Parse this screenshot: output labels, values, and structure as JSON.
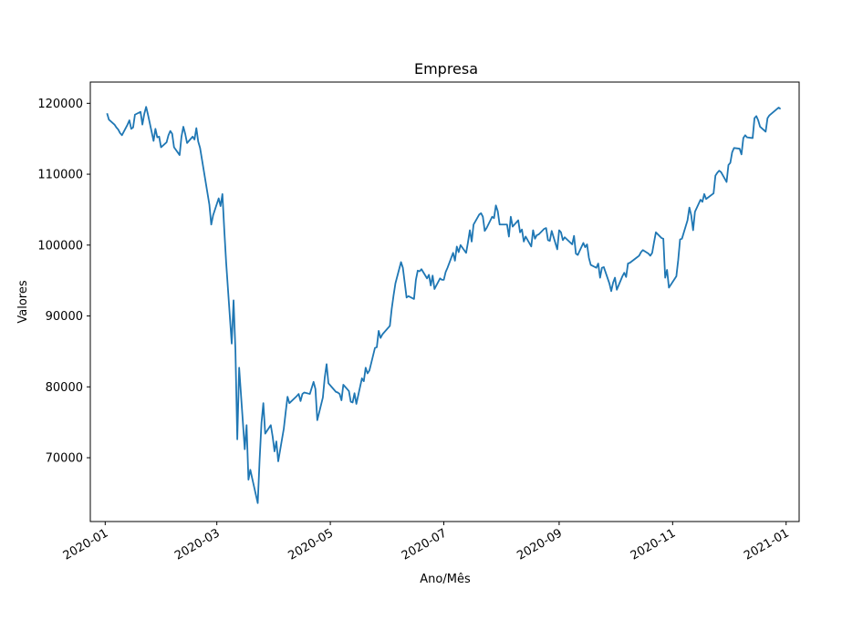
{
  "chart_data": {
    "type": "line",
    "title": "Empresa",
    "xlabel": "Ano/Mês",
    "ylabel": "Valores",
    "line_color": "#1f77b4",
    "ylim": [
      61000,
      123000
    ],
    "xlim": [
      "2019-12-24",
      "2021-01-08"
    ],
    "yticks": [
      70000,
      80000,
      90000,
      100000,
      110000,
      120000
    ],
    "yticklabels": [
      "70000",
      "80000",
      "90000",
      "100000",
      "110000",
      "120000"
    ],
    "xticks": [
      "2020-01-01",
      "2020-03-01",
      "2020-05-01",
      "2020-07-01",
      "2020-09-01",
      "2020-11-01",
      "2021-01-01"
    ],
    "xticklabels": [
      "2020-01",
      "2020-03",
      "2020-05",
      "2020-07",
      "2020-09",
      "2020-11",
      "2021-01"
    ],
    "series": [
      {
        "name": "Empresa",
        "points": [
          [
            "2020-01-02",
            118600
          ],
          [
            "2020-01-03",
            117700
          ],
          [
            "2020-01-06",
            117000
          ],
          [
            "2020-01-07",
            116600
          ],
          [
            "2020-01-08",
            116300
          ],
          [
            "2020-01-09",
            115800
          ],
          [
            "2020-01-10",
            115500
          ],
          [
            "2020-01-13",
            117000
          ],
          [
            "2020-01-14",
            117600
          ],
          [
            "2020-01-15",
            116400
          ],
          [
            "2020-01-16",
            116600
          ],
          [
            "2020-01-17",
            118400
          ],
          [
            "2020-01-20",
            118800
          ],
          [
            "2020-01-21",
            117000
          ],
          [
            "2020-01-22",
            118500
          ],
          [
            "2020-01-23",
            119500
          ],
          [
            "2020-01-24",
            118400
          ],
          [
            "2020-01-27",
            114700
          ],
          [
            "2020-01-28",
            116400
          ],
          [
            "2020-01-29",
            115200
          ],
          [
            "2020-01-30",
            115300
          ],
          [
            "2020-01-31",
            113800
          ],
          [
            "2020-02-03",
            114500
          ],
          [
            "2020-02-04",
            115500
          ],
          [
            "2020-02-05",
            116100
          ],
          [
            "2020-02-06",
            115700
          ],
          [
            "2020-02-07",
            113800
          ],
          [
            "2020-02-10",
            112700
          ],
          [
            "2020-02-11",
            115300
          ],
          [
            "2020-02-12",
            116700
          ],
          [
            "2020-02-13",
            115700
          ],
          [
            "2020-02-14",
            114400
          ],
          [
            "2020-02-17",
            115300
          ],
          [
            "2020-02-18",
            114900
          ],
          [
            "2020-02-19",
            116500
          ],
          [
            "2020-02-20",
            114600
          ],
          [
            "2020-02-21",
            113700
          ],
          [
            "2020-02-26",
            105700
          ],
          [
            "2020-02-27",
            102900
          ],
          [
            "2020-02-28",
            104200
          ],
          [
            "2020-03-02",
            106600
          ],
          [
            "2020-03-03",
            105500
          ],
          [
            "2020-03-04",
            107200
          ],
          [
            "2020-03-05",
            102200
          ],
          [
            "2020-03-06",
            97600
          ],
          [
            "2020-03-09",
            86100
          ],
          [
            "2020-03-10",
            92200
          ],
          [
            "2020-03-11",
            85200
          ],
          [
            "2020-03-12",
            72600
          ],
          [
            "2020-03-13",
            82700
          ],
          [
            "2020-03-16",
            71200
          ],
          [
            "2020-03-17",
            74600
          ],
          [
            "2020-03-18",
            66900
          ],
          [
            "2020-03-19",
            68300
          ],
          [
            "2020-03-20",
            67100
          ],
          [
            "2020-03-23",
            63600
          ],
          [
            "2020-03-24",
            69700
          ],
          [
            "2020-03-25",
            74900
          ],
          [
            "2020-03-26",
            77700
          ],
          [
            "2020-03-27",
            73400
          ],
          [
            "2020-03-30",
            74600
          ],
          [
            "2020-03-31",
            73000
          ],
          [
            "2020-04-01",
            70900
          ],
          [
            "2020-04-02",
            72300
          ],
          [
            "2020-04-03",
            69500
          ],
          [
            "2020-04-06",
            74100
          ],
          [
            "2020-04-07",
            76400
          ],
          [
            "2020-04-08",
            78600
          ],
          [
            "2020-04-09",
            77700
          ],
          [
            "2020-04-13",
            78700
          ],
          [
            "2020-04-14",
            79000
          ],
          [
            "2020-04-15",
            78000
          ],
          [
            "2020-04-16",
            79000
          ],
          [
            "2020-04-17",
            79200
          ],
          [
            "2020-04-20",
            79000
          ],
          [
            "2020-04-22",
            80700
          ],
          [
            "2020-04-23",
            79700
          ],
          [
            "2020-04-24",
            75300
          ],
          [
            "2020-04-27",
            78500
          ],
          [
            "2020-04-28",
            81300
          ],
          [
            "2020-04-29",
            83200
          ],
          [
            "2020-04-30",
            80500
          ],
          [
            "2020-05-04",
            79300
          ],
          [
            "2020-05-05",
            79200
          ],
          [
            "2020-05-06",
            79000
          ],
          [
            "2020-05-07",
            78100
          ],
          [
            "2020-05-08",
            80300
          ],
          [
            "2020-05-11",
            79400
          ],
          [
            "2020-05-12",
            77900
          ],
          [
            "2020-05-13",
            77800
          ],
          [
            "2020-05-14",
            79100
          ],
          [
            "2020-05-15",
            77600
          ],
          [
            "2020-05-18",
            81200
          ],
          [
            "2020-05-19",
            80800
          ],
          [
            "2020-05-20",
            82700
          ],
          [
            "2020-05-21",
            81900
          ],
          [
            "2020-05-22",
            82300
          ],
          [
            "2020-05-25",
            85500
          ],
          [
            "2020-05-26",
            85600
          ],
          [
            "2020-05-27",
            87900
          ],
          [
            "2020-05-28",
            86900
          ],
          [
            "2020-05-29",
            87400
          ],
          [
            "2020-06-02",
            88600
          ],
          [
            "2020-06-03",
            91000
          ],
          [
            "2020-06-04",
            92900
          ],
          [
            "2020-06-05",
            94600
          ],
          [
            "2020-06-08",
            97600
          ],
          [
            "2020-06-09",
            96800
          ],
          [
            "2020-06-10",
            94700
          ],
          [
            "2020-06-11",
            92600
          ],
          [
            "2020-06-12",
            92800
          ],
          [
            "2020-06-15",
            92400
          ],
          [
            "2020-06-16",
            95100
          ],
          [
            "2020-06-17",
            96400
          ],
          [
            "2020-06-18",
            96300
          ],
          [
            "2020-06-19",
            96600
          ],
          [
            "2020-06-22",
            95300
          ],
          [
            "2020-06-23",
            95800
          ],
          [
            "2020-06-24",
            94300
          ],
          [
            "2020-06-25",
            95700
          ],
          [
            "2020-06-26",
            93800
          ],
          [
            "2020-06-29",
            95300
          ],
          [
            "2020-06-30",
            95100
          ],
          [
            "2020-07-01",
            95100
          ],
          [
            "2020-07-02",
            96200
          ],
          [
            "2020-07-03",
            96800
          ],
          [
            "2020-07-06",
            98900
          ],
          [
            "2020-07-07",
            97800
          ],
          [
            "2020-07-08",
            99800
          ],
          [
            "2020-07-09",
            99000
          ],
          [
            "2020-07-10",
            100000
          ],
          [
            "2020-07-13",
            98900
          ],
          [
            "2020-07-14",
            100400
          ],
          [
            "2020-07-15",
            102100
          ],
          [
            "2020-07-16",
            100500
          ],
          [
            "2020-07-17",
            102900
          ],
          [
            "2020-07-20",
            104300
          ],
          [
            "2020-07-21",
            104500
          ],
          [
            "2020-07-22",
            104000
          ],
          [
            "2020-07-23",
            102000
          ],
          [
            "2020-07-24",
            102400
          ],
          [
            "2020-07-27",
            104000
          ],
          [
            "2020-07-28",
            103800
          ],
          [
            "2020-07-29",
            105600
          ],
          [
            "2020-07-30",
            104800
          ],
          [
            "2020-07-31",
            102900
          ],
          [
            "2020-08-03",
            102900
          ],
          [
            "2020-08-04",
            102900
          ],
          [
            "2020-08-05",
            101200
          ],
          [
            "2020-08-06",
            104000
          ],
          [
            "2020-08-07",
            102600
          ],
          [
            "2020-08-10",
            103500
          ],
          [
            "2020-08-11",
            101800
          ],
          [
            "2020-08-12",
            102200
          ],
          [
            "2020-08-13",
            100500
          ],
          [
            "2020-08-14",
            101200
          ],
          [
            "2020-08-17",
            99800
          ],
          [
            "2020-08-18",
            102100
          ],
          [
            "2020-08-19",
            100900
          ],
          [
            "2020-08-20",
            101400
          ],
          [
            "2020-08-21",
            101500
          ],
          [
            "2020-08-24",
            102300
          ],
          [
            "2020-08-25",
            102400
          ],
          [
            "2020-08-26",
            100700
          ],
          [
            "2020-08-27",
            100600
          ],
          [
            "2020-08-28",
            102000
          ],
          [
            "2020-08-31",
            99400
          ],
          [
            "2020-09-01",
            102100
          ],
          [
            "2020-09-02",
            101800
          ],
          [
            "2020-09-03",
            100700
          ],
          [
            "2020-09-04",
            101100
          ],
          [
            "2020-09-08",
            100100
          ],
          [
            "2020-09-09",
            101300
          ],
          [
            "2020-09-10",
            98800
          ],
          [
            "2020-09-11",
            98600
          ],
          [
            "2020-09-14",
            100300
          ],
          [
            "2020-09-15",
            99700
          ],
          [
            "2020-09-16",
            100100
          ],
          [
            "2020-09-17",
            98200
          ],
          [
            "2020-09-18",
            97200
          ],
          [
            "2020-09-21",
            96800
          ],
          [
            "2020-09-22",
            97400
          ],
          [
            "2020-09-23",
            95400
          ],
          [
            "2020-09-24",
            96800
          ],
          [
            "2020-09-25",
            96900
          ],
          [
            "2020-09-28",
            94600
          ],
          [
            "2020-09-29",
            93500
          ],
          [
            "2020-09-30",
            94700
          ],
          [
            "2020-10-01",
            95400
          ],
          [
            "2020-10-02",
            93700
          ],
          [
            "2020-10-05",
            95600
          ],
          [
            "2020-10-06",
            96100
          ],
          [
            "2020-10-07",
            95500
          ],
          [
            "2020-10-08",
            97400
          ],
          [
            "2020-10-09",
            97500
          ],
          [
            "2020-10-13",
            98300
          ],
          [
            "2020-10-14",
            98500
          ],
          [
            "2020-10-15",
            99000
          ],
          [
            "2020-10-16",
            99300
          ],
          [
            "2020-10-19",
            98800
          ],
          [
            "2020-10-20",
            98500
          ],
          [
            "2020-10-21",
            98900
          ],
          [
            "2020-10-22",
            100400
          ],
          [
            "2020-10-23",
            101800
          ],
          [
            "2020-10-26",
            101000
          ],
          [
            "2020-10-27",
            100900
          ],
          [
            "2020-10-28",
            95400
          ],
          [
            "2020-10-29",
            96500
          ],
          [
            "2020-10-30",
            94000
          ],
          [
            "2020-11-03",
            95600
          ],
          [
            "2020-11-04",
            97900
          ],
          [
            "2020-11-05",
            100800
          ],
          [
            "2020-11-06",
            100900
          ],
          [
            "2020-11-09",
            103500
          ],
          [
            "2020-11-10",
            105300
          ],
          [
            "2020-11-11",
            104200
          ],
          [
            "2020-11-12",
            102100
          ],
          [
            "2020-11-13",
            104700
          ],
          [
            "2020-11-16",
            106400
          ],
          [
            "2020-11-17",
            106100
          ],
          [
            "2020-11-18",
            107200
          ],
          [
            "2020-11-19",
            106500
          ],
          [
            "2020-11-23",
            107300
          ],
          [
            "2020-11-24",
            109800
          ],
          [
            "2020-11-25",
            110200
          ],
          [
            "2020-11-26",
            110500
          ],
          [
            "2020-11-27",
            110300
          ],
          [
            "2020-11-30",
            108900
          ],
          [
            "2020-12-01",
            111300
          ],
          [
            "2020-12-02",
            111600
          ],
          [
            "2020-12-03",
            113100
          ],
          [
            "2020-12-04",
            113700
          ],
          [
            "2020-12-07",
            113600
          ],
          [
            "2020-12-08",
            112800
          ],
          [
            "2020-12-09",
            115100
          ],
          [
            "2020-12-10",
            115500
          ],
          [
            "2020-12-11",
            115200
          ],
          [
            "2020-12-14",
            115100
          ],
          [
            "2020-12-15",
            117900
          ],
          [
            "2020-12-16",
            118200
          ],
          [
            "2020-12-17",
            117600
          ],
          [
            "2020-12-18",
            116700
          ],
          [
            "2020-12-21",
            116000
          ],
          [
            "2020-12-22",
            117900
          ],
          [
            "2020-12-23",
            118300
          ],
          [
            "2020-12-28",
            119400
          ],
          [
            "2020-12-29",
            119200
          ]
        ]
      }
    ]
  }
}
